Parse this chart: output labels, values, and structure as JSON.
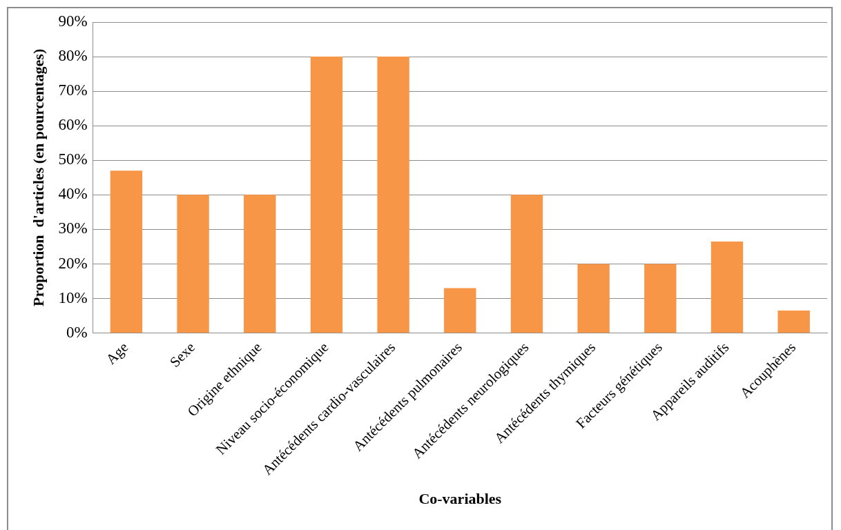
{
  "chart_data": {
    "type": "bar",
    "xlabel": "Co-variables",
    "ylabel": "Proportion  d'articles (en pourcentages)",
    "categories": [
      "Age",
      "Sexe",
      "Origine ethnique",
      "Niveau socio-économique",
      "Antécédents cardio-vasculaires",
      "Antécédents pulmonaires",
      "Antécédents neurologiques",
      "Antécédents thymiques",
      "Facteurs génétiques",
      "Appareils auditifs",
      "Acouphènes"
    ],
    "values": [
      47,
      40,
      40,
      80,
      80,
      13,
      40,
      20,
      20,
      26.5,
      6.5
    ],
    "color": "#f79646",
    "ylim": [
      0,
      90
    ],
    "yticks": [
      {
        "value": 0,
        "label": "0%"
      },
      {
        "value": 10,
        "label": "10%"
      },
      {
        "value": 20,
        "label": "20%"
      },
      {
        "value": 30,
        "label": "30%"
      },
      {
        "value": 40,
        "label": "40%"
      },
      {
        "value": 50,
        "label": "50%"
      },
      {
        "value": 60,
        "label": "60%"
      },
      {
        "value": 70,
        "label": "70%"
      },
      {
        "value": 80,
        "label": "80%"
      },
      {
        "value": 90,
        "label": "90%"
      }
    ],
    "grid": "y"
  }
}
